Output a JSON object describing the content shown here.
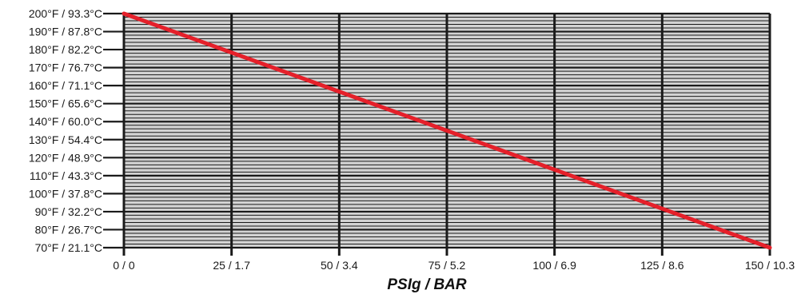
{
  "chart_data": {
    "type": "line",
    "title": "",
    "xlabel": "PSIg / BAR",
    "ylabel": "",
    "x_ticks": [
      {
        "value": 0,
        "label": "0 / 0"
      },
      {
        "value": 25,
        "label": "25 / 1.7"
      },
      {
        "value": 50,
        "label": "50 / 3.4"
      },
      {
        "value": 75,
        "label": "75 / 5.2"
      },
      {
        "value": 100,
        "label": "100 / 6.9"
      },
      {
        "value": 125,
        "label": "125 / 8.6"
      },
      {
        "value": 150,
        "label": "150 / 10.3"
      }
    ],
    "y_ticks": [
      {
        "value": 70,
        "label": "70°F / 21.1°C"
      },
      {
        "value": 80,
        "label": "80°F / 26.7°C"
      },
      {
        "value": 90,
        "label": "90°F / 32.2°C"
      },
      {
        "value": 100,
        "label": "100°F / 37.8°C"
      },
      {
        "value": 110,
        "label": "110°F / 43.3°C"
      },
      {
        "value": 120,
        "label": "120°F / 48.9°C"
      },
      {
        "value": 130,
        "label": "130°F / 54.4°C"
      },
      {
        "value": 140,
        "label": "140°F / 60.0°C"
      },
      {
        "value": 150,
        "label": "150°F / 65.6°C"
      },
      {
        "value": 160,
        "label": "160°F / 71.1°C"
      },
      {
        "value": 170,
        "label": "170°F / 76.7°C"
      },
      {
        "value": 180,
        "label": "180°F / 82.2°C"
      },
      {
        "value": 190,
        "label": "190°F / 87.8°C"
      },
      {
        "value": 200,
        "label": "200°F / 93.3°C"
      }
    ],
    "xlim": [
      0,
      150
    ],
    "ylim": [
      70,
      200
    ],
    "minor_grid_step_y": 2,
    "grid": true,
    "series": [
      {
        "x": [
          0,
          150
        ],
        "y": [
          200,
          70
        ]
      }
    ],
    "colors": {
      "plot_bg": "#d3d3d3",
      "grid": "#1a1a1a",
      "line": "#e5202a"
    }
  }
}
